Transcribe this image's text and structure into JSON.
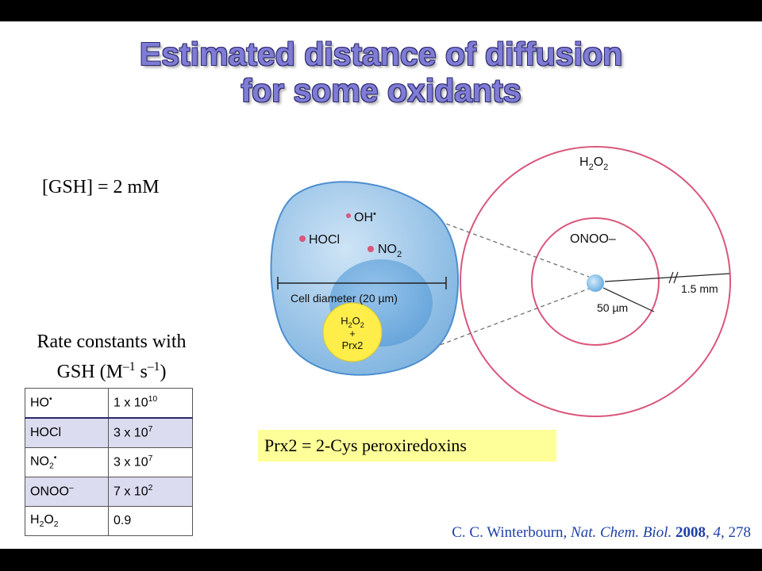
{
  "slide": {
    "title_line1": "Estimated distance of diffusion",
    "title_line2": "for some oxidants",
    "gsh_conc": "[GSH] = 2 mM",
    "rate_caption_line1": "Rate constants with",
    "rate_caption_line2_prefix": "GSH (M",
    "rate_caption_exp1": "–1",
    "rate_caption_mid": " s",
    "rate_caption_exp2": "–1",
    "rate_caption_suffix": ")",
    "prx_note": "Prx2 = 2-Cys peroxiredoxins",
    "citation": {
      "author": "C. C. Winterbourn, ",
      "journal": "Nat. Chem. Biol.",
      "year": "2008",
      "volume": "4",
      "pages": "278"
    }
  },
  "rate_table": {
    "rows": [
      {
        "species_base": "HO",
        "species_sub": "",
        "species_sup": "•",
        "value_base": "1 x 10",
        "value_exp": "10"
      },
      {
        "species_base": "HOCl",
        "species_sub": "",
        "species_sup": "",
        "value_base": "3 x 10",
        "value_exp": "7"
      },
      {
        "species_base": "NO",
        "species_sub": "2",
        "species_sup": "•",
        "value_base": "3 x 10",
        "value_exp": "7"
      },
      {
        "species_base": "ONOO",
        "species_sub": "",
        "species_sup": "–",
        "value_base": "7 x 10",
        "value_exp": "2"
      },
      {
        "species_base": "H",
        "species_sub": "2",
        "species_mid": "O",
        "species_sub2": "2",
        "species_sup": "",
        "value_base": "0.9",
        "value_exp": ""
      }
    ]
  },
  "diagram": {
    "cell_label": "Cell diameter (20 µm)",
    "oh_label": "OH",
    "oh_dot": "•",
    "hocl_label": "HOCl",
    "no2_label": "NO",
    "no2_sub": "2",
    "h2o2_inner_line1_base": "H",
    "h2o2_inner_line1_sub": "2",
    "h2o2_inner_line1_mid": "O",
    "h2o2_inner_line1_sub2": "2",
    "h2o2_inner_plus": "+",
    "h2o2_inner_line3": "Prx2",
    "outer_label_base": "H",
    "outer_label_sub": "2",
    "outer_label_mid": "O",
    "outer_label_sub2": "2",
    "middle_label": "ONOO–",
    "dist_outer": "1.5 mm",
    "dist_middle": "50 µm",
    "colors": {
      "cell_fill": "#9cc6ea",
      "cell_stroke": "#4d8fcf",
      "ring": "#d9577a",
      "dot": "#d9577a",
      "yellow": "#ffed4a"
    }
  }
}
